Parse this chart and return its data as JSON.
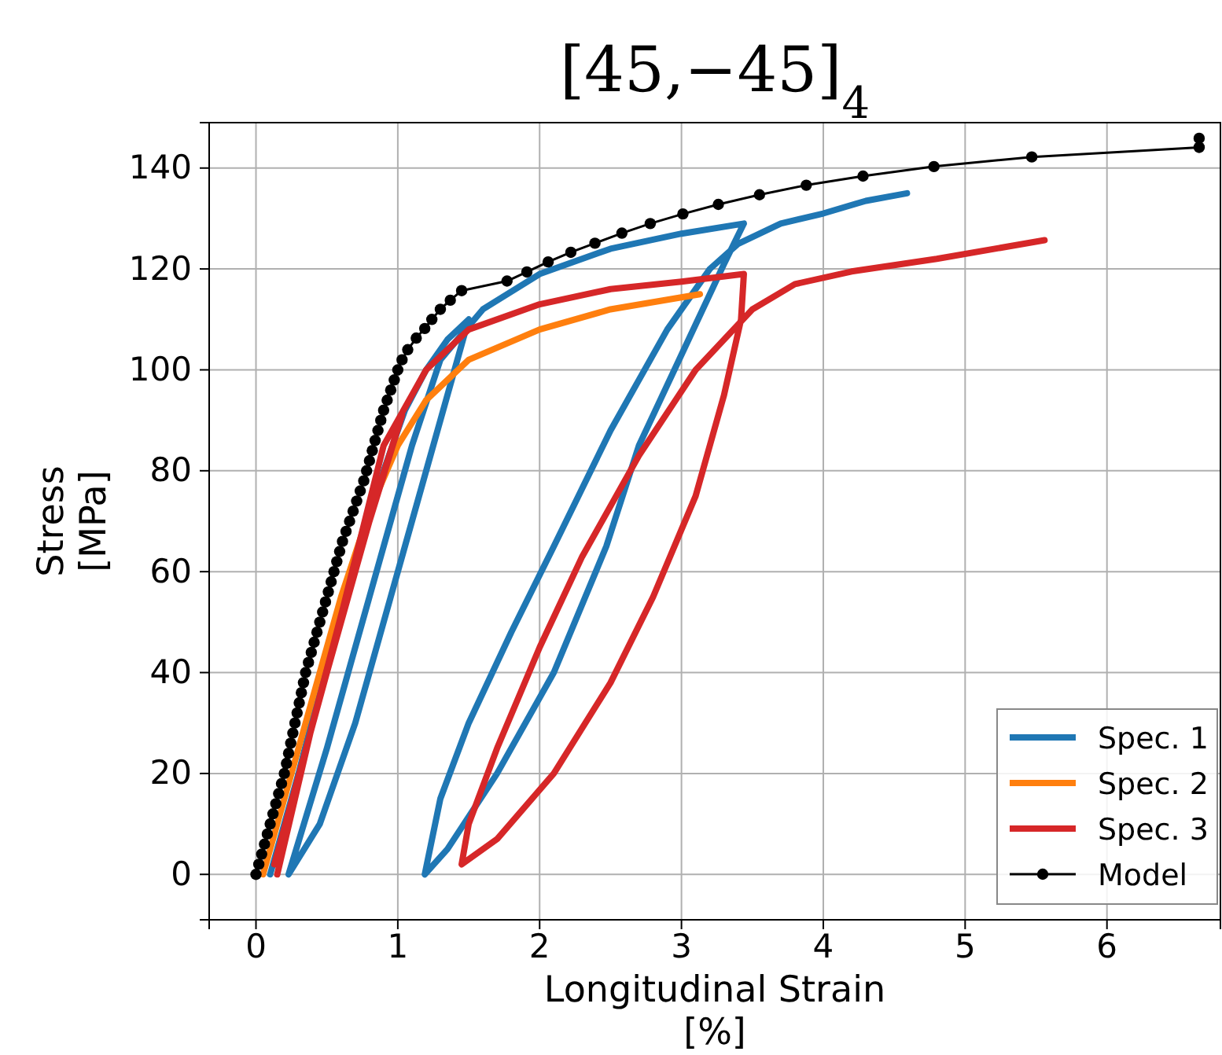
{
  "chart_data": {
    "type": "line",
    "title": "[45,−45]$_{4}$",
    "xlabel": "Longitudinal Strain\n[%]",
    "ylabel": "Stress\n[MPa]",
    "xlim": [
      -0.33,
      6.8
    ],
    "ylim": [
      -9,
      149
    ],
    "xticks": [
      0,
      1,
      2,
      3,
      4,
      5,
      6
    ],
    "yticks": [
      0,
      20,
      40,
      60,
      80,
      100,
      120,
      140
    ],
    "grid": true,
    "legend": "bottom right",
    "line_style": "solid",
    "series": [
      {
        "name": "Spec. 1",
        "color": "#1f77b4",
        "marker": "none",
        "x": [
          0.1,
          0.3,
          0.5,
          0.7,
          0.9,
          1.05,
          1.2,
          1.35,
          1.5,
          1.45,
          1.2,
          0.95,
          0.7,
          0.45,
          0.23,
          0.5,
          0.8,
          1.1,
          1.3,
          1.6,
          2,
          2.5,
          3,
          3.44,
          3.3,
          3.0,
          2.7,
          2.47,
          2.1,
          1.7,
          1.35,
          1.19,
          1.3,
          1.5,
          1.8,
          2.1,
          2.5,
          2.9,
          3.2,
          3.4,
          3.7,
          4.0,
          4.3,
          4.59
        ],
        "values": [
          0,
          20,
          42,
          62,
          80,
          92,
          100,
          106,
          110,
          105,
          80,
          55,
          30,
          10,
          0,
          25,
          55,
          85,
          102,
          112,
          119,
          124,
          127,
          129,
          121,
          103,
          85,
          65,
          40,
          20,
          5,
          0,
          15,
          30,
          48,
          65,
          88,
          108,
          120,
          125,
          129,
          131,
          133.5,
          135
        ]
      },
      {
        "name": "Spec. 2",
        "color": "#ff7f0e",
        "marker": "none",
        "x": [
          0.05,
          0.2,
          0.4,
          0.6,
          0.8,
          1.0,
          1.2,
          1.5,
          2,
          2.5,
          3.13
        ],
        "values": [
          0,
          15,
          35,
          55,
          72,
          85,
          94,
          102,
          108,
          112,
          115
        ]
      },
      {
        "name": "Spec. 3",
        "color": "#d62728",
        "marker": "none",
        "x": [
          0.15,
          0.4,
          0.7,
          1.03,
          0.8,
          0.5,
          0.13,
          0.5,
          0.9,
          1.2,
          1.5,
          2,
          2.5,
          3,
          3.44,
          3.42,
          3.3,
          3.1,
          2.8,
          2.5,
          2.1,
          1.7,
          1.45,
          1.5,
          1.7,
          2.0,
          2.3,
          2.7,
          3.1,
          3.5,
          3.8,
          4.2,
          4.8,
          5.56
        ],
        "values": [
          0,
          30,
          62,
          91,
          70,
          40,
          2,
          40,
          85,
          100,
          108,
          113,
          116,
          117.5,
          119,
          110,
          95,
          75,
          55,
          38,
          20,
          7,
          2,
          10,
          25,
          45,
          63,
          83,
          100,
          112,
          117,
          119.5,
          122,
          125.7
        ]
      },
      {
        "name": "Model",
        "color": "#000000",
        "marker": "circle",
        "x": [
          0,
          0.02,
          0.04,
          0.06,
          0.08,
          0.1,
          0.12,
          0.14,
          0.16,
          0.18,
          0.2,
          0.215,
          0.23,
          0.245,
          0.26,
          0.275,
          0.29,
          0.305,
          0.32,
          0.335,
          0.35,
          0.37,
          0.39,
          0.41,
          0.43,
          0.45,
          0.47,
          0.49,
          0.51,
          0.53,
          0.55,
          0.57,
          0.59,
          0.61,
          0.635,
          0.66,
          0.685,
          0.71,
          0.735,
          0.76,
          0.78,
          0.8,
          0.82,
          0.84,
          0.86,
          0.88,
          0.9,
          0.925,
          0.95,
          0.975,
          1.0,
          1.03,
          1.07,
          1.13,
          1.19,
          1.24,
          1.3,
          1.37,
          1.45,
          1.77,
          1.91,
          2.06,
          2.22,
          2.39,
          2.58,
          2.78,
          3.01,
          3.26,
          3.55,
          3.88,
          4.28,
          4.78,
          5.47,
          6.65,
          6.65
        ],
        "values": [
          0,
          2,
          4,
          6,
          8,
          10,
          12,
          14,
          16,
          18,
          20,
          22,
          24,
          26,
          28,
          30,
          32,
          34,
          36,
          38,
          40,
          42,
          44,
          46,
          48,
          50,
          52,
          54,
          56,
          58,
          60,
          62,
          64,
          66,
          68,
          70,
          72,
          74,
          76,
          78,
          80,
          82,
          84,
          86,
          88,
          90,
          92,
          94,
          96,
          98,
          100,
          102,
          104,
          106.3,
          108.2,
          110,
          112,
          113.8,
          115.7,
          117.6,
          119.4,
          121.4,
          123.3,
          125.1,
          127.1,
          129,
          130.9,
          132.8,
          134.7,
          136.6,
          138.4,
          140.3,
          142.2,
          144.1,
          145.9
        ]
      }
    ]
  }
}
